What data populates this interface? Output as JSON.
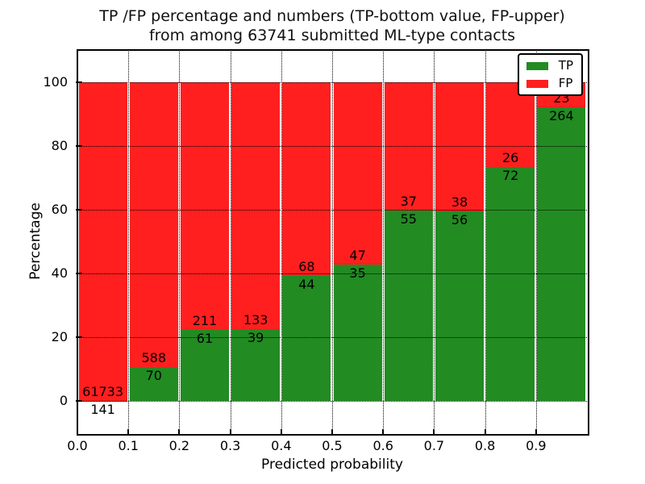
{
  "chart_data": {
    "type": "bar",
    "stacked": true,
    "title_lines": [
      "TP /FP percentage and numbers (TP-bottom value, FP-upper)",
      "from among 63741 submitted ML-type contacts"
    ],
    "xlabel": "Predicted probability",
    "ylabel": "Percentage",
    "categories": [
      "0.0-0.1",
      "0.1-0.2",
      "0.2-0.3",
      "0.3-0.4",
      "0.4-0.5",
      "0.5-0.6",
      "0.6-0.7",
      "0.7-0.8",
      "0.8-0.9",
      "0.9-1.0"
    ],
    "x_tick_labels": [
      "0.0",
      "0.1",
      "0.2",
      "0.3",
      "0.4",
      "0.5",
      "0.6",
      "0.7",
      "0.8",
      "0.9"
    ],
    "y_ticks": [
      0,
      20,
      40,
      60,
      80,
      100
    ],
    "xlim": [
      0.0,
      1.0
    ],
    "ylim": [
      -10,
      110
    ],
    "bin_width": 0.1,
    "total_contacts": 63741,
    "series": [
      {
        "name": "TP",
        "color": "#228B22",
        "counts": [
          141,
          70,
          61,
          39,
          44,
          35,
          55,
          56,
          72,
          264
        ]
      },
      {
        "name": "FP",
        "color": "#ff1f1f",
        "counts": [
          61733,
          588,
          211,
          133,
          68,
          47,
          37,
          38,
          26,
          23
        ]
      }
    ],
    "tp_percentages": [
      0.23,
      10.64,
      22.43,
      22.67,
      39.29,
      42.68,
      59.78,
      59.57,
      73.47,
      91.99
    ],
    "bars_normalized_to": 100,
    "annotation_rule": "TP count drawn just below segment boundary, FP count just above",
    "legend": {
      "position": "upper right",
      "entries": [
        "TP",
        "FP"
      ]
    },
    "grid": "dotted"
  }
}
